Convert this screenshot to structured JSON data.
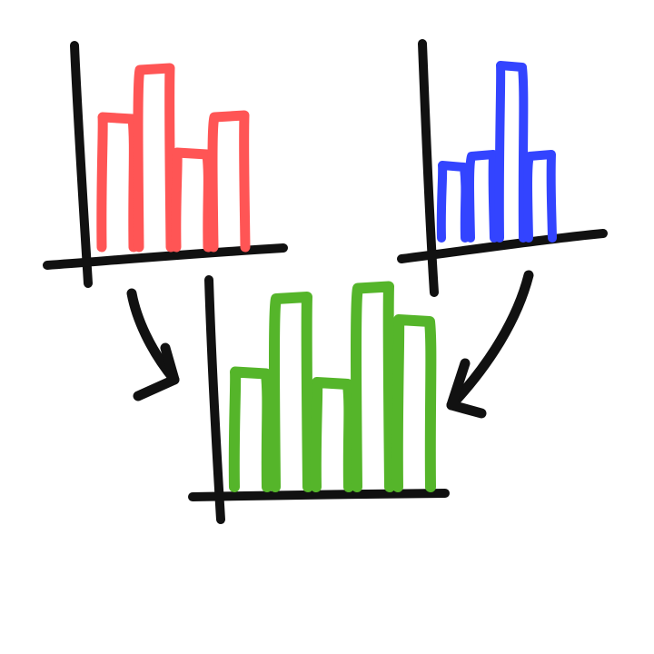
{
  "style": {
    "ink_color": "#111111",
    "background_color": "#ffffff"
  },
  "charts": [
    {
      "id": "red",
      "color": "#ff5555",
      "bars": [
        0.55,
        0.75,
        0.4,
        0.55
      ]
    },
    {
      "id": "blue",
      "color": "#3344ff",
      "bars": [
        0.4,
        0.45,
        0.95,
        0.45
      ]
    },
    {
      "id": "green",
      "color": "#55b52a",
      "bars": [
        0.55,
        0.9,
        0.5,
        0.95,
        0.8
      ]
    }
  ],
  "arrows": [
    {
      "from": "red",
      "to": "green",
      "icon": "curved-arrow-icon"
    },
    {
      "from": "blue",
      "to": "green",
      "icon": "curved-arrow-icon"
    }
  ]
}
